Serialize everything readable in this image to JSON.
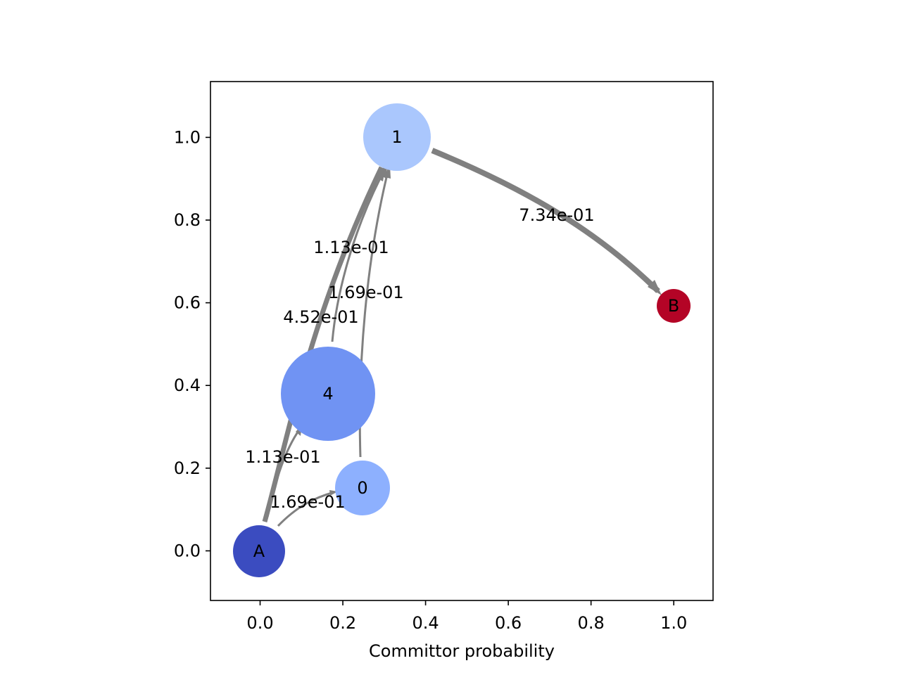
{
  "chart_data": {
    "type": "network",
    "xlabel": "Committor probability",
    "ylabel": "",
    "xlim": [
      -0.12,
      1.095
    ],
    "ylim": [
      -0.12,
      1.135
    ],
    "xticks": [
      0.0,
      0.2,
      0.4,
      0.6,
      0.8,
      1.0
    ],
    "yticks": [
      0.0,
      0.2,
      0.4,
      0.6,
      0.8,
      1.0
    ],
    "xtick_labels": [
      "0.0",
      "0.2",
      "0.4",
      "0.6",
      "0.8",
      "1.0"
    ],
    "ytick_labels": [
      "0.0",
      "0.2",
      "0.4",
      "0.6",
      "0.8",
      "1.0"
    ],
    "edge_color": "#808080",
    "nodes": [
      {
        "id": "A",
        "label": "A",
        "x": 0.0,
        "y": 0.0,
        "color": "#3b4cc0"
      },
      {
        "id": "0",
        "label": "0",
        "x": 0.25,
        "y": 0.153,
        "color": "#8db0fe"
      },
      {
        "id": "4",
        "label": "4",
        "x": 0.167,
        "y": 0.383,
        "color": "#7093f3"
      },
      {
        "id": "1",
        "label": "1",
        "x": 0.333,
        "y": 1.0,
        "color": "#aac7fd"
      },
      {
        "id": "B",
        "label": "B",
        "x": 1.0,
        "y": 0.593,
        "color": "#b40426"
      }
    ],
    "edges": [
      {
        "from": "A",
        "to": "0",
        "label": "1.69e-01",
        "label_x": 0.117,
        "label_y": 0.118
      },
      {
        "from": "A",
        "to": "4",
        "label": "1.13e-01",
        "label_x": 0.056,
        "label_y": 0.228
      },
      {
        "from": "A",
        "to": "1",
        "label": "4.52e-01",
        "label_x": 0.149,
        "label_y": 0.565
      },
      {
        "from": "4",
        "to": "1",
        "label": "1.13e-01",
        "label_x": 0.222,
        "label_y": 0.732
      },
      {
        "from": "0",
        "to": "1",
        "label": "1.69e-01",
        "label_x": 0.257,
        "label_y": 0.625
      },
      {
        "from": "1",
        "to": "B",
        "label": "7.34e-01",
        "label_x": 0.717,
        "label_y": 0.81
      }
    ]
  }
}
